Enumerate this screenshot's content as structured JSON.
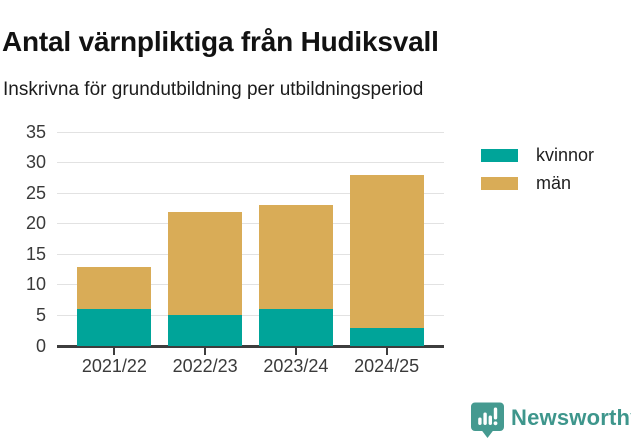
{
  "header": {
    "title": "Antal värnpliktiga från Hudiksvall",
    "subtitle": "Inskrivna för grundutbildning per utbildningsperiod"
  },
  "chart_data": {
    "type": "bar",
    "stacked": true,
    "title": "Antal värnpliktiga från Hudiksvall",
    "subtitle": "Inskrivna för grundutbildning per utbildningsperiod",
    "categories": [
      "2021/22",
      "2022/23",
      "2023/24",
      "2024/25"
    ],
    "series": [
      {
        "name": "kvinnor",
        "color": "#00a499",
        "values": [
          6,
          5,
          6,
          3
        ]
      },
      {
        "name": "män",
        "color": "#d9ac57",
        "values": [
          7,
          17,
          17,
          25
        ]
      }
    ],
    "stack_totals": [
      13,
      22,
      23,
      28
    ],
    "xlabel": "",
    "ylabel": "",
    "ylim": [
      0,
      35
    ],
    "yticks": [
      0,
      5,
      10,
      15,
      20,
      25,
      30,
      35
    ],
    "grid": true,
    "legend_position": "right"
  },
  "colors": {
    "grid": "#e2e2e2",
    "axis": "#3d3d3d",
    "tick_text": "#3a3a3a",
    "logo": "#3e968c"
  },
  "branding": {
    "logo_text": "Newsworthy"
  }
}
